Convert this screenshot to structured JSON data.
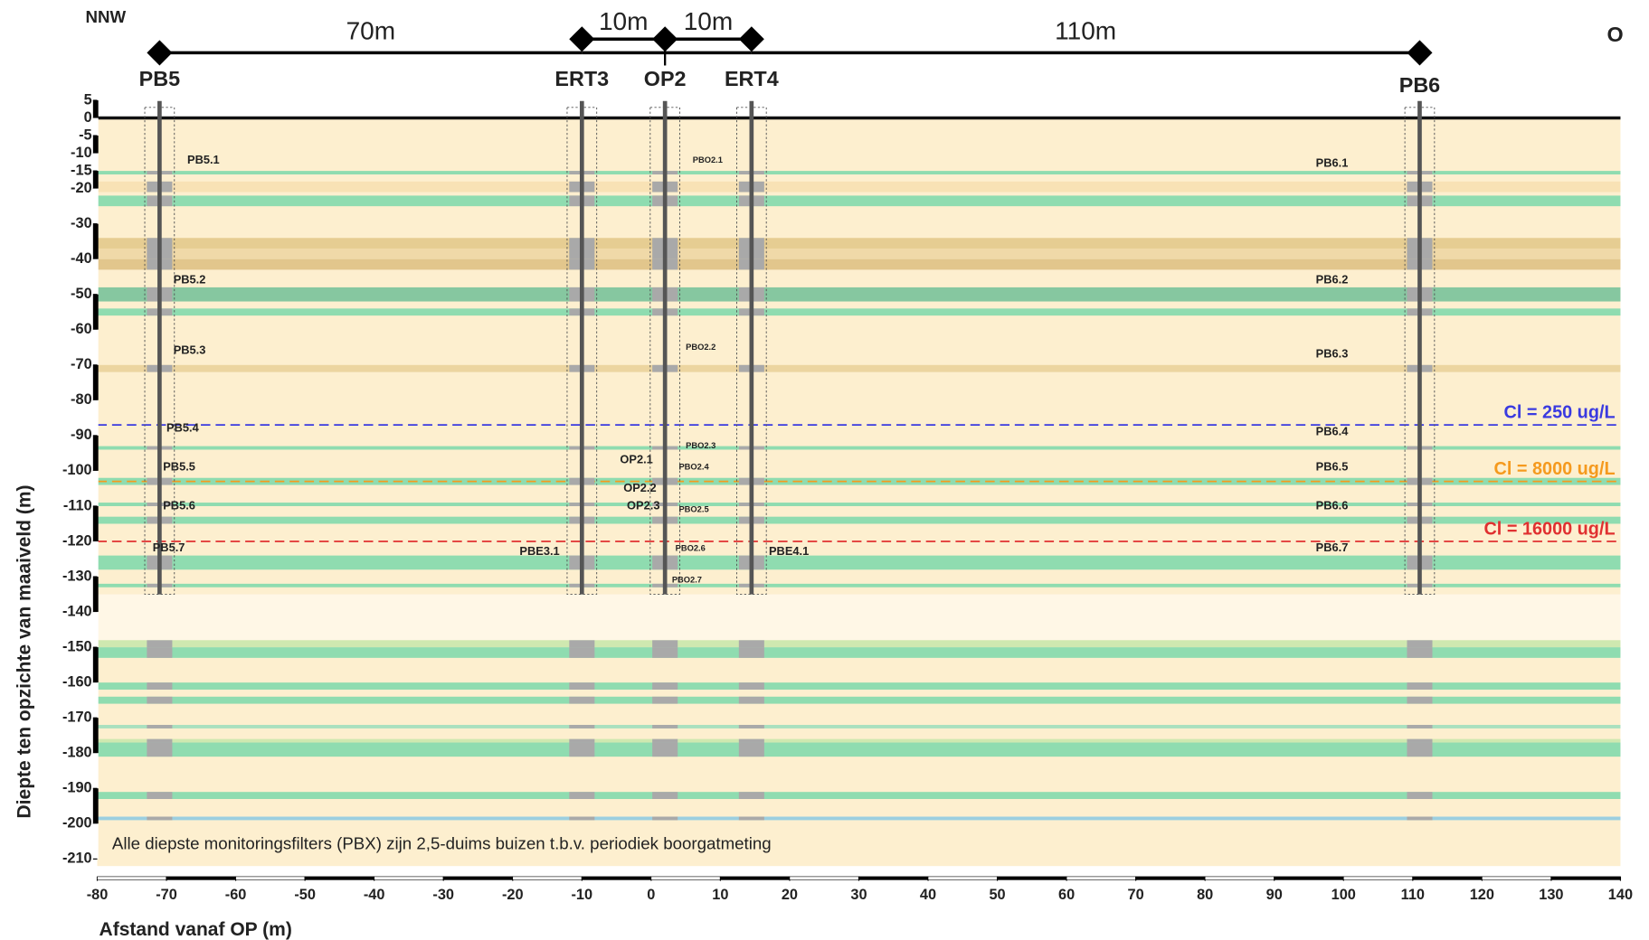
{
  "chart_data": {
    "type": "cross-section",
    "direction_left": "NNW",
    "direction_right": "O",
    "xlabel": "Afstand vanaf OP (m)",
    "ylabel": "Diepte ten opzichte van maaiveld (m)",
    "note": "Alle diepste monitoringsfilters (PBX) zijn 2,5-duims buizen t.b.v. periodiek boorgatmeting",
    "xlim": [
      -80,
      140
    ],
    "ylim": [
      -215,
      5
    ],
    "xticks": [
      -80,
      -70,
      -60,
      -50,
      -40,
      -30,
      -20,
      -10,
      0,
      10,
      20,
      30,
      40,
      50,
      60,
      70,
      80,
      90,
      100,
      110,
      120,
      130,
      140
    ],
    "yticks": [
      5,
      0,
      -5,
      -10,
      -15,
      -20,
      -30,
      -40,
      -50,
      -60,
      -70,
      -80,
      -90,
      -100,
      -110,
      -120,
      -130,
      -140,
      -150,
      -160,
      -170,
      -180,
      -190,
      -200,
      -210
    ],
    "layers": [
      {
        "top": 0,
        "bottom": -212,
        "color": "#fdefcf"
      },
      {
        "top": -135,
        "bottom": -148,
        "color": "#fff7e6"
      },
      {
        "top": -15,
        "bottom": -16,
        "color": "#8fdcb0"
      },
      {
        "top": -18,
        "bottom": -21,
        "color": "#f8e2b5"
      },
      {
        "top": -22,
        "bottom": -25,
        "color": "#8fdcb0"
      },
      {
        "top": -34,
        "bottom": -37,
        "color": "#e6cd92"
      },
      {
        "top": -37,
        "bottom": -40,
        "color": "#f0d9a8"
      },
      {
        "top": -40,
        "bottom": -43,
        "color": "#e2c68c"
      },
      {
        "top": -48,
        "bottom": -52,
        "color": "#86c7a0"
      },
      {
        "top": -54,
        "bottom": -56,
        "color": "#8fdcb0"
      },
      {
        "top": -70,
        "bottom": -72,
        "color": "#ecd5a0"
      },
      {
        "top": -93,
        "bottom": -94,
        "color": "#8fdcb0"
      },
      {
        "top": -102,
        "bottom": -104,
        "color": "#8fdcb0"
      },
      {
        "top": -109,
        "bottom": -110,
        "color": "#8fdcb0"
      },
      {
        "top": -113,
        "bottom": -115,
        "color": "#8fdcb0"
      },
      {
        "top": -124,
        "bottom": -128,
        "color": "#8fdcb0"
      },
      {
        "top": -132,
        "bottom": -133,
        "color": "#8fdcb0"
      },
      {
        "top": -148,
        "bottom": -150,
        "color": "#cfe8b0"
      },
      {
        "top": -150,
        "bottom": -153,
        "color": "#8fdcb0"
      },
      {
        "top": -160,
        "bottom": -162,
        "color": "#8fdcb0"
      },
      {
        "top": -164,
        "bottom": -166,
        "color": "#8fdcb0"
      },
      {
        "top": -172,
        "bottom": -173,
        "color": "#a9e0bf"
      },
      {
        "top": -176,
        "bottom": -177,
        "color": "#cfe8b0"
      },
      {
        "top": -177,
        "bottom": -181,
        "color": "#8fdcb0"
      },
      {
        "top": -191,
        "bottom": -193,
        "color": "#8fdcb0"
      },
      {
        "top": -198,
        "bottom": -199,
        "color": "#9ccfe0"
      }
    ],
    "boreholes": [
      {
        "name": "PB5",
        "x": -71,
        "top": 3,
        "bottom": -135
      },
      {
        "name": "ERT3",
        "x": -10,
        "top": 3,
        "bottom": -135
      },
      {
        "name": "OP2",
        "x": 2,
        "top": 3,
        "bottom": -135
      },
      {
        "name": "ERT4",
        "x": 14.5,
        "top": 3,
        "bottom": -135
      },
      {
        "name": "PB6",
        "x": 111,
        "top": 3,
        "bottom": -135
      }
    ],
    "distances": [
      "70m",
      "10m",
      "10m",
      "110m"
    ],
    "filters": [
      {
        "label": "PB5.1",
        "x": -67,
        "y": -12
      },
      {
        "label": "PB5.2",
        "x": -69,
        "y": -46
      },
      {
        "label": "PB5.3",
        "x": -69,
        "y": -66
      },
      {
        "label": "PB5.4",
        "x": -70,
        "y": -88
      },
      {
        "label": "PB5.5",
        "x": -70.5,
        "y": -99
      },
      {
        "label": "PB5.6",
        "x": -70.5,
        "y": -110
      },
      {
        "label": "PB5.7",
        "x": -72,
        "y": -122
      },
      {
        "label": "PBE3.1",
        "x": -19,
        "y": -123
      },
      {
        "label": "OP2.1",
        "x": -4.5,
        "y": -97
      },
      {
        "label": "OP2.2",
        "x": -4,
        "y": -105
      },
      {
        "label": "OP2.3",
        "x": -3.5,
        "y": -110
      },
      {
        "label": "PBO2.1",
        "x": 6,
        "y": -12
      },
      {
        "label": "PBO2.2",
        "x": 5,
        "y": -65
      },
      {
        "label": "PBO2.3",
        "x": 5,
        "y": -93
      },
      {
        "label": "PBO2.4",
        "x": 4,
        "y": -99
      },
      {
        "label": "PBO2.5",
        "x": 4,
        "y": -111
      },
      {
        "label": "PBO2.6",
        "x": 3.5,
        "y": -122
      },
      {
        "label": "PBO2.7",
        "x": 3,
        "y": -131
      },
      {
        "label": "PBE4.1",
        "x": 17,
        "y": -123
      },
      {
        "label": "PB6.1",
        "x": 96,
        "y": -13
      },
      {
        "label": "PB6.2",
        "x": 96,
        "y": -46
      },
      {
        "label": "PB6.3",
        "x": 96,
        "y": -67
      },
      {
        "label": "PB6.4",
        "x": 96,
        "y": -89
      },
      {
        "label": "PB6.5",
        "x": 96,
        "y": -99
      },
      {
        "label": "PB6.6",
        "x": 96,
        "y": -110
      },
      {
        "label": "PB6.7",
        "x": 96,
        "y": -122
      }
    ],
    "thresholds": [
      {
        "label": "Cl = 250 ug/L",
        "value": -87,
        "color": "#3a3ae0"
      },
      {
        "label": "Cl = 8000 ug/L",
        "value": -103,
        "color": "#f59a1e"
      },
      {
        "label": "Cl = 16000 ug/L",
        "value": -120,
        "color": "#e03030"
      }
    ]
  }
}
